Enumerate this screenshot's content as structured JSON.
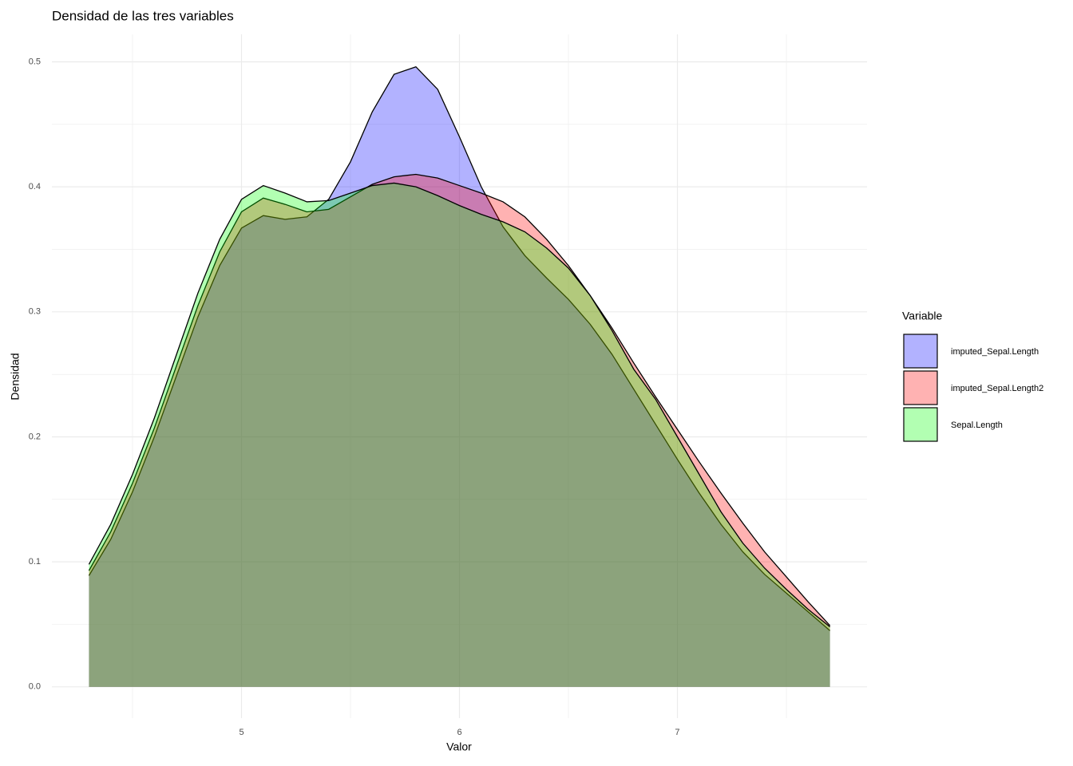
{
  "chart_data": {
    "type": "density",
    "title": "Densidad de las tres variables",
    "x_label": "Valor",
    "y_label": "Densidad",
    "legend_title": "Variable",
    "legend_position": "right",
    "grid": true,
    "x": [
      4.3,
      4.4,
      4.5,
      4.6,
      4.7,
      4.8,
      4.9,
      5.0,
      5.1,
      5.2,
      5.3,
      5.4,
      5.5,
      5.6,
      5.7,
      5.8,
      5.9,
      6.0,
      6.1,
      6.2,
      6.3,
      6.4,
      6.5,
      6.6,
      6.7,
      6.8,
      6.9,
      7.0,
      7.1,
      7.2,
      7.3,
      7.4,
      7.5,
      7.6,
      7.7
    ],
    "series": [
      {
        "name": "imputed_Sepal.Length",
        "color": "#0000ff",
        "values": [
          0.089,
          0.118,
          0.156,
          0.2,
          0.248,
          0.296,
          0.337,
          0.367,
          0.377,
          0.374,
          0.376,
          0.39,
          0.42,
          0.46,
          0.49,
          0.496,
          0.478,
          0.44,
          0.4,
          0.368,
          0.345,
          0.327,
          0.31,
          0.29,
          0.266,
          0.238,
          0.21,
          0.182,
          0.155,
          0.13,
          0.108,
          0.09,
          0.075,
          0.06,
          0.045
        ]
      },
      {
        "name": "imputed_Sepal.Length2",
        "color": "#ff0000",
        "values": [
          0.093,
          0.124,
          0.163,
          0.207,
          0.256,
          0.305,
          0.348,
          0.38,
          0.391,
          0.386,
          0.38,
          0.382,
          0.392,
          0.402,
          0.408,
          0.41,
          0.407,
          0.401,
          0.395,
          0.388,
          0.376,
          0.358,
          0.337,
          0.313,
          0.287,
          0.259,
          0.232,
          0.206,
          0.18,
          0.155,
          0.131,
          0.108,
          0.088,
          0.068,
          0.049
        ]
      },
      {
        "name": "Sepal.Length",
        "color": "#00ff00",
        "values": [
          0.098,
          0.13,
          0.17,
          0.215,
          0.265,
          0.315,
          0.358,
          0.39,
          0.401,
          0.395,
          0.388,
          0.389,
          0.395,
          0.401,
          0.403,
          0.4,
          0.393,
          0.385,
          0.378,
          0.372,
          0.364,
          0.351,
          0.335,
          0.313,
          0.285,
          0.254,
          0.23,
          0.2,
          0.17,
          0.14,
          0.115,
          0.095,
          0.078,
          0.062,
          0.048
        ]
      }
    ],
    "fill_opacity": 0.3,
    "xlim": [
      4.13,
      7.87
    ],
    "ylim": [
      -0.025,
      0.522
    ],
    "xticks": [
      5,
      6,
      7
    ],
    "yticks": [
      {
        "value": 0,
        "label": "0.0"
      },
      0.1,
      0.2,
      0.3,
      0.4,
      0.5
    ],
    "x_minor_grid": [
      4.5,
      5.5,
      6.5,
      7.5
    ],
    "y_minor_grid": [
      0.05,
      0.15,
      0.25,
      0.35,
      0.45
    ]
  }
}
